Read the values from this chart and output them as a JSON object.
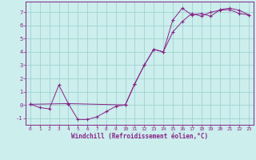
{
  "xlabel": "Windchill (Refroidissement éolien,°C)",
  "bg_color": "#cceeed",
  "line_color": "#882288",
  "grid_color": "#99cccc",
  "axis_color": "#882288",
  "text_color": "#882288",
  "xlim": [
    -0.5,
    23.5
  ],
  "ylim": [
    -1.5,
    7.8
  ],
  "xticks": [
    0,
    1,
    2,
    3,
    4,
    5,
    6,
    7,
    8,
    9,
    10,
    11,
    12,
    13,
    14,
    15,
    16,
    17,
    18,
    19,
    20,
    21,
    22,
    23
  ],
  "yticks": [
    -1,
    0,
    1,
    2,
    3,
    4,
    5,
    6,
    7
  ],
  "line1_x": [
    0,
    1,
    2,
    3,
    4,
    5,
    6,
    7,
    8,
    9,
    10,
    11,
    12,
    13,
    14,
    15,
    16,
    17,
    18,
    19,
    20,
    21,
    22,
    23
  ],
  "line1_y": [
    0.05,
    -0.2,
    -0.3,
    1.5,
    0.1,
    -1.1,
    -1.1,
    -0.9,
    -0.5,
    -0.1,
    0.0,
    1.6,
    3.0,
    4.2,
    4.0,
    6.4,
    7.3,
    6.8,
    6.9,
    6.7,
    7.2,
    7.3,
    7.15,
    6.8
  ],
  "line2_x": [
    0,
    4,
    10,
    11,
    12,
    13,
    14,
    15,
    16,
    17,
    18,
    19,
    20,
    21,
    22,
    23
  ],
  "line2_y": [
    0.05,
    0.1,
    0.0,
    1.6,
    3.0,
    4.2,
    4.0,
    5.5,
    6.3,
    6.9,
    6.7,
    7.0,
    7.15,
    7.2,
    6.9,
    6.8
  ]
}
